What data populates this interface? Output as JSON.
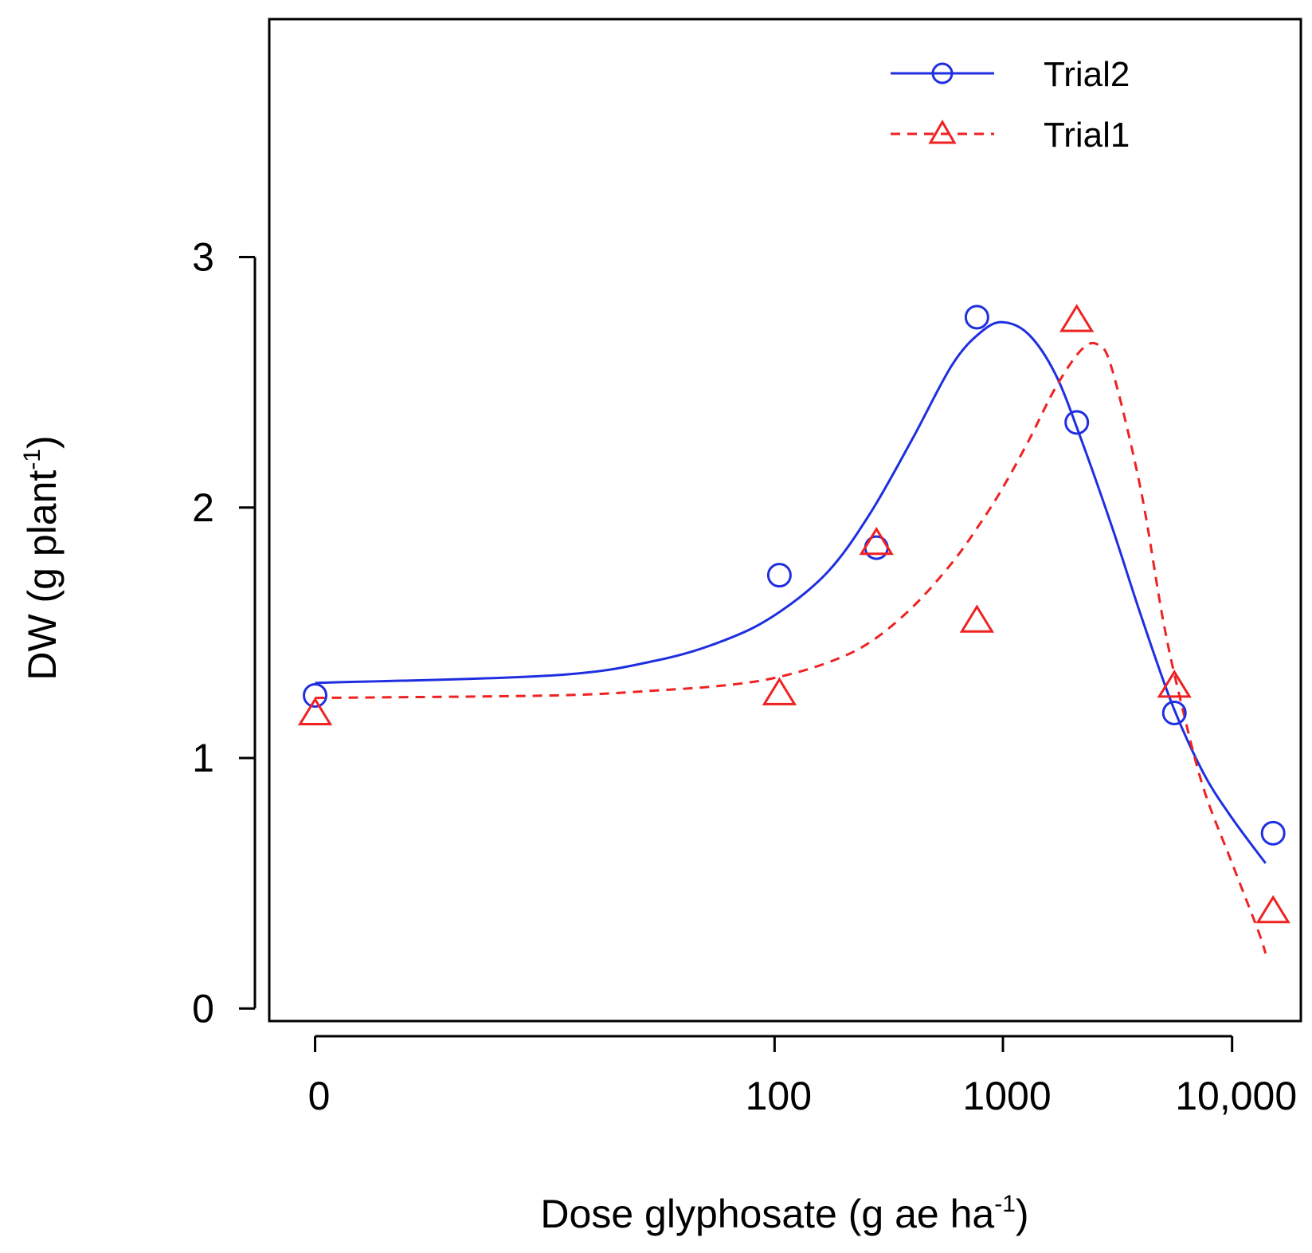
{
  "chart_data": {
    "type": "line",
    "title": "",
    "xlabel": {
      "main": "Dose glyphosate (g ae ha",
      "sup": "-1",
      "tail": ")"
    },
    "ylabel": {
      "main": "DW (g plant",
      "sup": "-1",
      "tail": ")"
    },
    "x_scale": "log10(dose+1)",
    "xlim": [
      -0.2,
      4.3
    ],
    "ylim": [
      -0.05,
      3.95
    ],
    "x_ticks": [
      {
        "value": 0,
        "label": "0"
      },
      {
        "value": 100,
        "label": "100"
      },
      {
        "value": 1000,
        "label": "1000"
      },
      {
        "value": 10000,
        "label": "10,000"
      }
    ],
    "y_ticks": [
      {
        "value": 0,
        "label": "0"
      },
      {
        "value": 1,
        "label": "1"
      },
      {
        "value": 2,
        "label": "2"
      },
      {
        "value": 3,
        "label": "3"
      }
    ],
    "legend_position": "top-right",
    "series": [
      {
        "name": "Trial2",
        "color": "#1f2fe0",
        "line_style": "solid",
        "marker": "circle",
        "points": [
          {
            "x": 0,
            "y": 1.25
          },
          {
            "x": 105,
            "y": 1.73
          },
          {
            "x": 280,
            "y": 1.84
          },
          {
            "x": 770,
            "y": 2.76
          },
          {
            "x": 2100,
            "y": 2.34
          },
          {
            "x": 5600,
            "y": 1.18
          },
          {
            "x": 15100,
            "y": 0.7
          }
        ],
        "curve": [
          {
            "x": 0,
            "y": 1.3
          },
          {
            "x": 10,
            "y": 1.33
          },
          {
            "x": 30,
            "y": 1.39
          },
          {
            "x": 60,
            "y": 1.47
          },
          {
            "x": 100,
            "y": 1.57
          },
          {
            "x": 170,
            "y": 1.74
          },
          {
            "x": 260,
            "y": 1.97
          },
          {
            "x": 400,
            "y": 2.27
          },
          {
            "x": 600,
            "y": 2.57
          },
          {
            "x": 800,
            "y": 2.7
          },
          {
            "x": 1000,
            "y": 2.74
          },
          {
            "x": 1300,
            "y": 2.69
          },
          {
            "x": 1700,
            "y": 2.53
          },
          {
            "x": 2200,
            "y": 2.27
          },
          {
            "x": 3000,
            "y": 1.92
          },
          {
            "x": 4000,
            "y": 1.57
          },
          {
            "x": 5500,
            "y": 1.21
          },
          {
            "x": 7500,
            "y": 0.94
          },
          {
            "x": 10000,
            "y": 0.76
          },
          {
            "x": 14000,
            "y": 0.58
          }
        ]
      },
      {
        "name": "Trial1",
        "color": "#ee2222",
        "line_style": "dashed",
        "marker": "triangle",
        "points": [
          {
            "x": 0,
            "y": 1.18
          },
          {
            "x": 105,
            "y": 1.26
          },
          {
            "x": 280,
            "y": 1.86
          },
          {
            "x": 770,
            "y": 1.55
          },
          {
            "x": 2100,
            "y": 2.75
          },
          {
            "x": 5600,
            "y": 1.29
          },
          {
            "x": 15100,
            "y": 0.39
          }
        ],
        "curve": [
          {
            "x": 0,
            "y": 1.24
          },
          {
            "x": 10,
            "y": 1.25
          },
          {
            "x": 30,
            "y": 1.27
          },
          {
            "x": 60,
            "y": 1.29
          },
          {
            "x": 100,
            "y": 1.32
          },
          {
            "x": 170,
            "y": 1.38
          },
          {
            "x": 260,
            "y": 1.46
          },
          {
            "x": 400,
            "y": 1.6
          },
          {
            "x": 600,
            "y": 1.78
          },
          {
            "x": 800,
            "y": 1.94
          },
          {
            "x": 1000,
            "y": 2.08
          },
          {
            "x": 1300,
            "y": 2.27
          },
          {
            "x": 1700,
            "y": 2.48
          },
          {
            "x": 2200,
            "y": 2.63
          },
          {
            "x": 2600,
            "y": 2.65
          },
          {
            "x": 3000,
            "y": 2.55
          },
          {
            "x": 4000,
            "y": 2.07
          },
          {
            "x": 5000,
            "y": 1.55
          },
          {
            "x": 6000,
            "y": 1.22
          },
          {
            "x": 7500,
            "y": 0.88
          },
          {
            "x": 10000,
            "y": 0.58
          },
          {
            "x": 13000,
            "y": 0.31
          },
          {
            "x": 14000,
            "y": 0.22
          }
        ]
      }
    ]
  }
}
